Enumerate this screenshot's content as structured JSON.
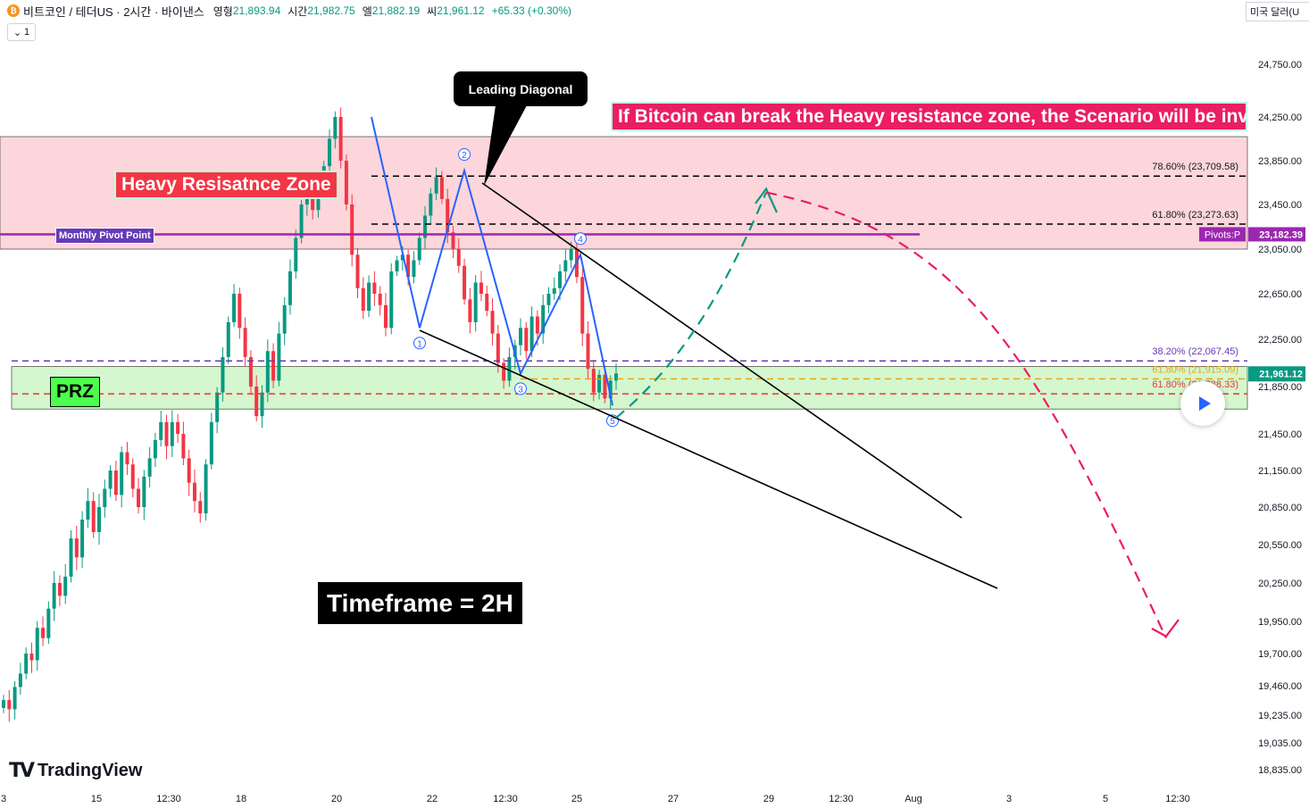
{
  "header": {
    "symbol": "비트코인 / 테더US · 2시간 · 바이낸스",
    "open_label": "영형",
    "open_value": "21,893.94",
    "high_label": "시간",
    "high_value": "21,982.75",
    "low_label": "엘",
    "low_value": "21,882.19",
    "close_label": "씨",
    "close_value": "21,961.12",
    "change": "+65.33 (+0.30%)",
    "interval_select": "1",
    "currency": "미국 달러(U",
    "logo_text": "TradingView"
  },
  "colors": {
    "up": "#089981",
    "down": "#f23645",
    "resistance_zone": "#fcd6da",
    "prz_zone": "#d4f7cf",
    "pivot": "#9c27b0",
    "wave": "#2962ff",
    "projection_up": "#089981",
    "projection_down": "#e91e63"
  },
  "chart_data": {
    "type": "candlestick",
    "title": "",
    "xlabel": "",
    "ylabel": "",
    "timeframe": "2H",
    "ylim": [
      18835,
      24750
    ],
    "y_ticks": [
      "24,750.00",
      "24,250.00",
      "23,850.00",
      "23,450.00",
      "23,050.00",
      "22,650.00",
      "22,250.00",
      "21,850.00",
      "21,450.00",
      "21,150.00",
      "20,850.00",
      "20,550.00",
      "20,250.00",
      "19,950.00",
      "19,700.00",
      "19,460.00",
      "19,235.00",
      "19,035.00",
      "18,835.00"
    ],
    "x_ticks": [
      "3",
      "15",
      "12:30",
      "18",
      "20",
      "22",
      "12:30",
      "25",
      "27",
      "29",
      "12:30",
      "Aug",
      "3",
      "5",
      "12:30"
    ],
    "last_price": "21,961.12",
    "price_path": [
      19350,
      19280,
      19450,
      19550,
      19700,
      19650,
      19900,
      19820,
      20050,
      20250,
      20150,
      20300,
      20600,
      20450,
      20750,
      20900,
      20650,
      20850,
      21000,
      21150,
      20950,
      21300,
      21200,
      21000,
      20850,
      21100,
      21250,
      21400,
      21550,
      21350,
      21550,
      21450,
      21250,
      21050,
      20900,
      20800,
      21200,
      21550,
      21800,
      22100,
      22400,
      22650,
      22350,
      22100,
      21850,
      21600,
      21800,
      22150,
      21900,
      22300,
      22550,
      22850,
      23150,
      23450,
      23550,
      23400,
      23600,
      23800,
      24050,
      24250,
      23850,
      23450,
      23000,
      22700,
      22500,
      22750,
      22650,
      22550,
      22350,
      22850,
      22950,
      23000,
      22800,
      22950,
      23150,
      23350,
      23550,
      23700,
      23500,
      23200,
      23050,
      22900,
      22600,
      22400,
      22750,
      22650,
      22500,
      22300,
      22050,
      21900,
      22100,
      22200,
      22350,
      22150,
      22450,
      22300,
      22550,
      22650,
      22700,
      22850,
      22950,
      23050,
      22800,
      22300,
      22000,
      21800,
      21950,
      21750,
      21900,
      21961
    ],
    "annotations": {
      "heavy_resistance": "Heavy Resisatnce Zone",
      "scenario": "If Bitcoin can break the Heavy resistance zone, the Scenario will be invalid.",
      "leading_diagonal": "Leading Diagonal",
      "prz": "PRZ",
      "timeframe_note": "Timeframe = 2H",
      "monthly_pivot": "Monthly Pivot Point",
      "pivot_tag": "Pivots:P",
      "pivot_value": "23,182.39",
      "waves": [
        "1",
        "2",
        "3",
        "4",
        "5"
      ]
    },
    "zones": [
      {
        "name": "Heavy Resistance Zone",
        "low": 23050,
        "high": 24070
      },
      {
        "name": "PRZ",
        "low": 21660,
        "high": 22020
      }
    ],
    "levels": [
      {
        "label": "78.60% (23,709.58)",
        "value": 23709.58,
        "color": "#000000"
      },
      {
        "label": "61.80% (23,273.63)",
        "value": 23273.63,
        "color": "#000000"
      },
      {
        "label": "38.20% (22,067.45)",
        "value": 22067.45,
        "color": "#673ab7"
      },
      {
        "label": "61.80% (21,915.09)",
        "value": 21915.09,
        "color": "#f0a30a"
      },
      {
        "label": "61.80% (21,788.33)",
        "value": 21788.33,
        "color": "#e53935"
      }
    ],
    "pivot": {
      "label": "Monthly Pivot Point",
      "value": 23182.39
    },
    "wave_points": [
      {
        "label": "1",
        "value": 22350
      },
      {
        "label": "2",
        "value": 23760
      },
      {
        "label": "3",
        "value": 21960
      },
      {
        "label": "4",
        "value": 23000
      },
      {
        "label": "5",
        "value": 21690
      }
    ],
    "projection": {
      "up_target": 23560,
      "down_target": 19820
    }
  }
}
